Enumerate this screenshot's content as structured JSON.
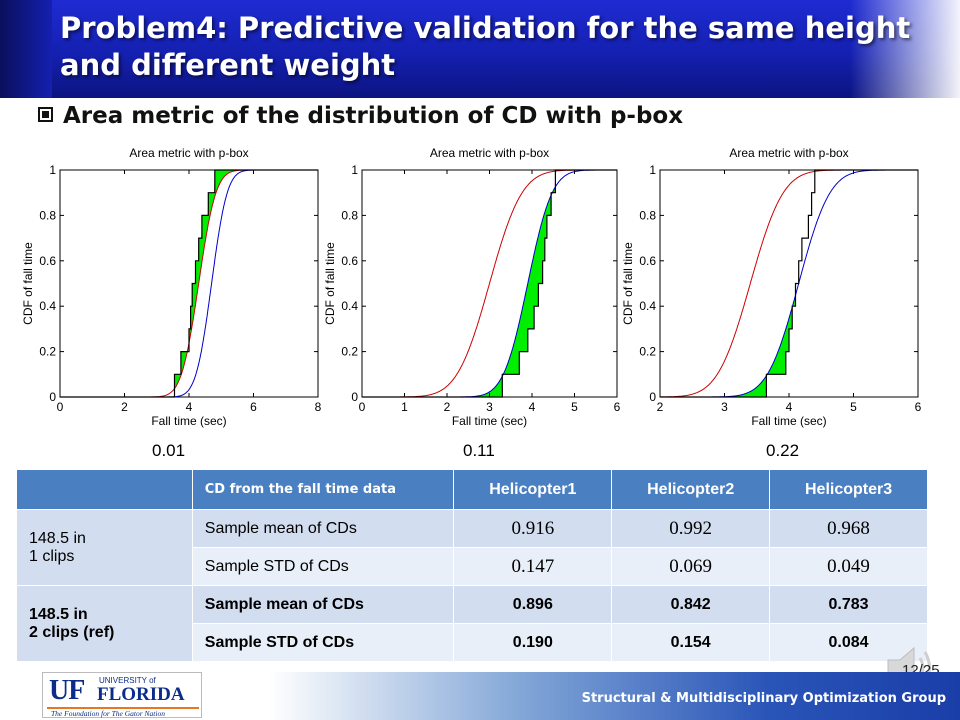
{
  "slide": {
    "title": "Problem4: Predictive validation for the same height and different weight",
    "bullet": "Area metric of the distribution of CD with p-box",
    "page_number": "12/25",
    "footer_text": "Structural & Multidisciplinary Optimization Group",
    "logo": {
      "uf": "UF",
      "university_of": "UNIVERSITY of",
      "florida": "FLORIDA",
      "tagline": "The Foundation for The Gator Nation"
    }
  },
  "colors": {
    "title_bg": "#1420b0",
    "lower_cdf": "#cc0000",
    "upper_cdf": "#0000cc",
    "data_cdf": "#000000",
    "area_fill": "#00ee00",
    "table_header": "#4a7fc1",
    "table_row_dark": "#d2def0",
    "table_row_light": "#e9eff8"
  },
  "chart_data": [
    {
      "type": "line",
      "title": "Area metric with p-box",
      "xlabel": "Fall time (sec)",
      "ylabel": "CDF of fall time",
      "xlim": [
        0,
        8
      ],
      "ylim": [
        0,
        1
      ],
      "xticks": [
        "0",
        "2",
        "4",
        "6",
        "8"
      ],
      "yticks": [
        "0",
        "0.2",
        "0.4",
        "0.6",
        "0.8",
        "1"
      ],
      "series": [
        {
          "kind": "lower-cdf",
          "mean": 4.3,
          "sd": 0.42
        },
        {
          "kind": "upper-cdf",
          "mean": 4.7,
          "sd": 0.38
        },
        {
          "kind": "empirical-cdf",
          "x": [
            3.55,
            3.75,
            4.0,
            4.05,
            4.1,
            4.2,
            4.3,
            4.4,
            4.6,
            4.8
          ],
          "y": [
            0.1,
            0.2,
            0.3,
            0.4,
            0.5,
            0.6,
            0.7,
            0.8,
            0.9,
            1.0
          ]
        }
      ],
      "area_metric": "0.01"
    },
    {
      "type": "line",
      "title": "Area metric with p-box",
      "xlabel": "Fall time (sec)",
      "ylabel": "CDF of fall time",
      "xlim": [
        0,
        6
      ],
      "ylim": [
        0,
        1
      ],
      "xticks": [
        "0",
        "1",
        "2",
        "3",
        "4",
        "5",
        "6"
      ],
      "yticks": [
        "0",
        "0.2",
        "0.4",
        "0.6",
        "0.8",
        "1"
      ],
      "series": [
        {
          "kind": "lower-cdf",
          "mean": 3.0,
          "sd": 0.6
        },
        {
          "kind": "upper-cdf",
          "mean": 3.9,
          "sd": 0.45
        },
        {
          "kind": "empirical-cdf",
          "x": [
            3.3,
            3.7,
            3.9,
            4.05,
            4.15,
            4.25,
            4.3,
            4.35,
            4.45,
            4.55
          ],
          "y": [
            0.1,
            0.2,
            0.3,
            0.4,
            0.5,
            0.6,
            0.7,
            0.8,
            0.9,
            1.0
          ]
        }
      ],
      "area_metric": "0.11"
    },
    {
      "type": "line",
      "title": "Area metric with p-box",
      "xlabel": "Fall time (sec)",
      "ylabel": "CDF of fall time",
      "xlim": [
        2,
        6
      ],
      "ylim": [
        0,
        1
      ],
      "xticks": [
        "2",
        "3",
        "4",
        "5",
        "6"
      ],
      "yticks": [
        "0",
        "0.2",
        "0.4",
        "0.6",
        "0.8",
        "1"
      ],
      "series": [
        {
          "kind": "lower-cdf",
          "mean": 3.4,
          "sd": 0.4
        },
        {
          "kind": "upper-cdf",
          "mean": 4.15,
          "sd": 0.38
        },
        {
          "kind": "empirical-cdf",
          "x": [
            3.65,
            3.95,
            4.0,
            4.05,
            4.1,
            4.15,
            4.2,
            4.3,
            4.35,
            4.4
          ],
          "y": [
            0.1,
            0.2,
            0.3,
            0.4,
            0.5,
            0.6,
            0.7,
            0.8,
            0.9,
            1.0
          ]
        }
      ],
      "area_metric": "0.22"
    }
  ],
  "table": {
    "header": [
      "",
      "CD from the fall time data",
      "Helicopter1",
      "Helicopter2",
      "Helicopter3"
    ],
    "group1_label_line1": "148.5 in",
    "group1_label_line2": "1 clips",
    "group2_label_line1": "148.5 in",
    "group2_label_line2": "2 clips (ref)",
    "rows": [
      {
        "label": "Sample mean of CDs",
        "values": [
          "0.916",
          "0.992",
          "0.968"
        ]
      },
      {
        "label": "Sample STD of CDs",
        "values": [
          "0.147",
          "0.069",
          "0.049"
        ]
      },
      {
        "label": "Sample mean of CDs",
        "values": [
          "0.896",
          "0.842",
          "0.783"
        ]
      },
      {
        "label": "Sample STD of CDs",
        "values": [
          "0.190",
          "0.154",
          "0.084"
        ]
      }
    ]
  }
}
